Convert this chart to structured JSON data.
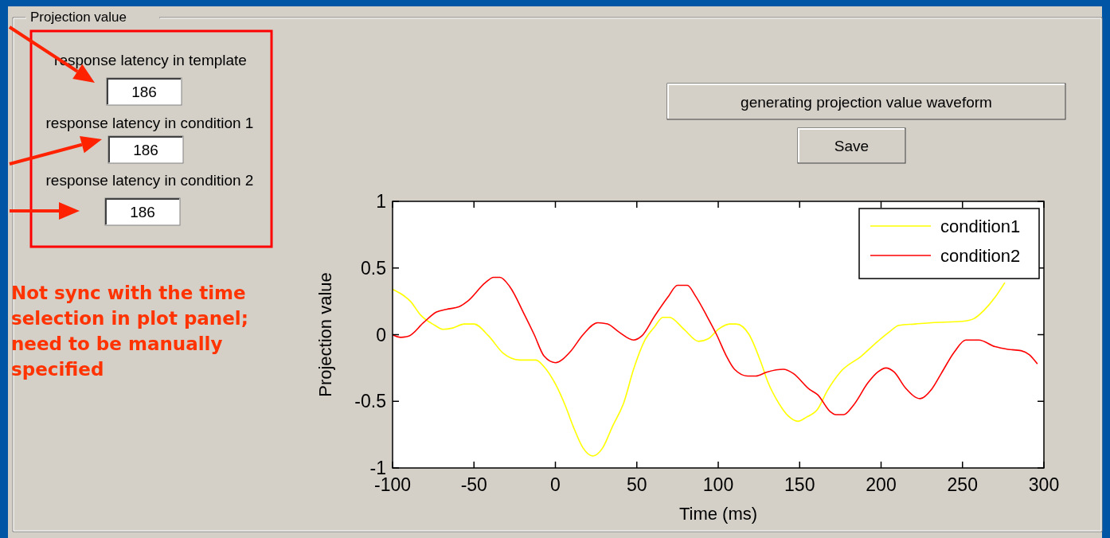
{
  "chart_data": {
    "type": "line",
    "xlabel": "Time (ms)",
    "ylabel": "Projection value",
    "xlim": [
      -100,
      300
    ],
    "xticks": [
      -100,
      -50,
      0,
      50,
      100,
      150,
      200,
      250,
      300
    ],
    "ylim": [
      -1,
      1
    ],
    "yticks": [
      -1,
      -0.5,
      0,
      0.5,
      1
    ],
    "legend": "top right",
    "series": [
      {
        "name": "condition1",
        "color": "#ffff00",
        "x": [
          -100,
          -94,
          -89,
          -83,
          -74,
          -69,
          -63,
          -56,
          -50,
          -41,
          -32,
          -22,
          -12,
          -7,
          0,
          6,
          11,
          17,
          23,
          29,
          35,
          42,
          48,
          55,
          61,
          66,
          70,
          79,
          88,
          94,
          100,
          107,
          111,
          119,
          126,
          131,
          136,
          143,
          149,
          154,
          161,
          167,
          175,
          188,
          198,
          205,
          211,
          221,
          231,
          250,
          257,
          263,
          270,
          276
        ],
        "values": [
          0.34,
          0.3,
          0.25,
          0.15,
          0.07,
          0.04,
          0.05,
          0.08,
          0.08,
          -0.01,
          -0.14,
          -0.19,
          -0.19,
          -0.24,
          -0.37,
          -0.53,
          -0.69,
          -0.85,
          -0.91,
          -0.85,
          -0.69,
          -0.51,
          -0.26,
          -0.04,
          0.06,
          0.13,
          0.13,
          0.04,
          -0.05,
          -0.03,
          0.04,
          0.08,
          0.08,
          0,
          -0.2,
          -0.37,
          -0.49,
          -0.61,
          -0.65,
          -0.62,
          -0.56,
          -0.42,
          -0.28,
          -0.16,
          -0.05,
          0.02,
          0.07,
          0.08,
          0.09,
          0.1,
          0.12,
          0.18,
          0.28,
          0.39
        ]
      },
      {
        "name": "condition2",
        "color": "#ff0000",
        "x": [
          -100,
          -95,
          -90,
          -81,
          -73,
          -67,
          -59,
          -54,
          -43,
          -38,
          -34,
          -28,
          -19,
          -13,
          -7,
          0,
          9,
          17,
          26,
          32,
          39,
          48,
          53,
          61,
          69,
          75,
          81,
          86,
          93,
          99,
          105,
          110,
          118,
          123,
          130,
          140,
          146,
          156,
          161,
          169,
          172,
          177,
          183,
          192,
          198,
          203,
          208,
          215,
          224,
          231,
          237,
          245,
          252,
          260,
          270,
          278,
          286,
          291,
          296
        ],
        "values": [
          0,
          -0.02,
          -0.01,
          0.09,
          0.17,
          0.19,
          0.21,
          0.25,
          0.39,
          0.43,
          0.43,
          0.36,
          0.15,
          0,
          -0.16,
          -0.21,
          -0.13,
          0,
          0.09,
          0.08,
          0.02,
          -0.04,
          -0.01,
          0.14,
          0.28,
          0.37,
          0.37,
          0.29,
          0.14,
          0,
          -0.16,
          -0.26,
          -0.31,
          -0.31,
          -0.28,
          -0.26,
          -0.29,
          -0.41,
          -0.45,
          -0.58,
          -0.6,
          -0.6,
          -0.53,
          -0.36,
          -0.28,
          -0.25,
          -0.28,
          -0.4,
          -0.48,
          -0.41,
          -0.29,
          -0.13,
          -0.04,
          -0.04,
          -0.09,
          -0.11,
          -0.12,
          -0.15,
          -0.22
        ]
      }
    ],
    "annotations": [
      "Projection value",
      "response latency in template",
      "186",
      "response latency in condition 1",
      "186",
      "response latency in condition 2",
      "186",
      "generating projection value waveform",
      "Save",
      "Not sync with the time selection in plot panel; need to be manually specified"
    ]
  }
}
